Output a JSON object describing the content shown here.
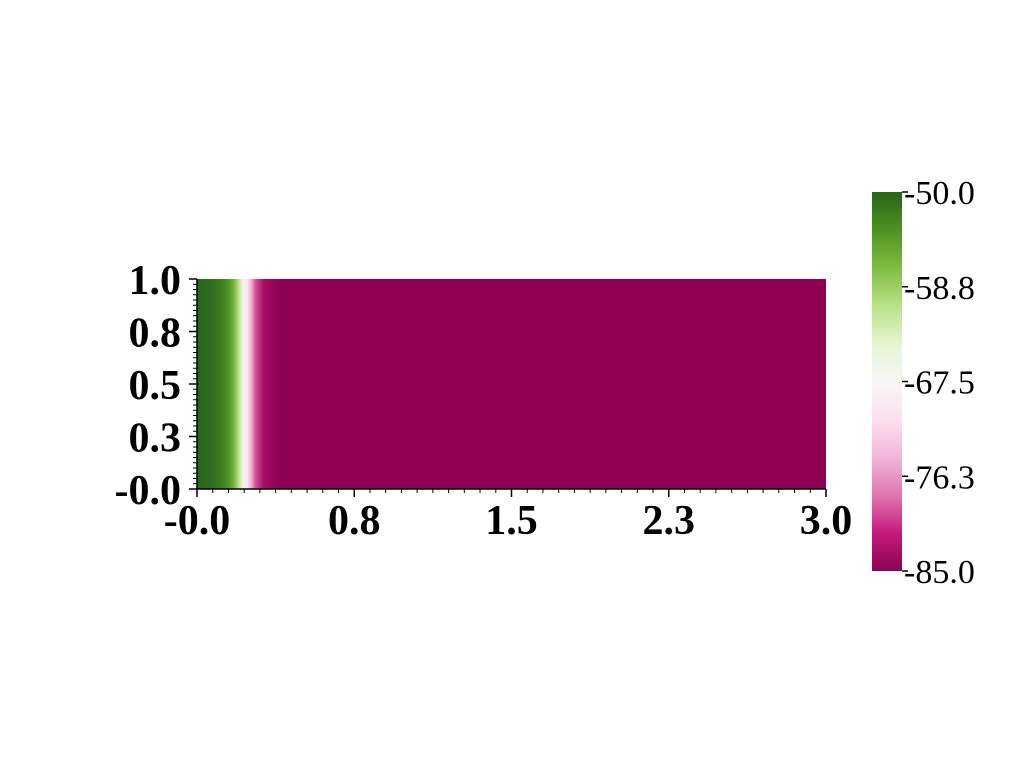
{
  "chart_data": {
    "type": "heatmap",
    "title": "",
    "xlabel": "",
    "ylabel": "",
    "xlim": [
      0,
      3
    ],
    "ylim": [
      0,
      1
    ],
    "x_tick_values": [
      0,
      0.75,
      1.5,
      2.25,
      3.0
    ],
    "x_tick_labels": [
      "-0.0",
      "0.8",
      "1.5",
      "2.3",
      "3.0"
    ],
    "y_tick_values": [
      0,
      0.25,
      0.5,
      0.75,
      1.0
    ],
    "y_tick_labels": [
      "-0.0",
      "0.3",
      "0.5",
      "0.8",
      "1.0"
    ],
    "x_minor_tick_step": 0.075,
    "y_minor_tick_step": 0.025,
    "field": {
      "description_axis": "x",
      "x": [
        0.0,
        0.06,
        0.12,
        0.16,
        0.18,
        0.2,
        0.22,
        0.24,
        0.26,
        0.28,
        0.32,
        0.4,
        1.0,
        3.0
      ],
      "values": [
        -50.0,
        -50.5,
        -52.0,
        -54.5,
        -57.0,
        -61.0,
        -66.0,
        -70.5,
        -75.0,
        -79.5,
        -83.5,
        -85.0,
        -85.0,
        -85.0
      ]
    },
    "colorbar": {
      "min": -85.0,
      "max": -50.0,
      "tick_values": [
        -50.0,
        -58.75,
        -67.5,
        -76.25,
        -85.0
      ],
      "tick_labels": [
        "-50.0",
        "-58.8",
        "-67.5",
        "-76.3",
        "-85.0"
      ],
      "colormap": "PiYG",
      "colors": [
        [
          0.0,
          "#8e0152"
        ],
        [
          0.1,
          "#c51b7d"
        ],
        [
          0.2,
          "#de77ae"
        ],
        [
          0.3,
          "#f1b6da"
        ],
        [
          0.4,
          "#fde0ef"
        ],
        [
          0.5,
          "#f7f7f7"
        ],
        [
          0.6,
          "#e6f5d0"
        ],
        [
          0.7,
          "#b8e186"
        ],
        [
          0.8,
          "#7fbc41"
        ],
        [
          0.9,
          "#4d9221"
        ],
        [
          1.0,
          "#276419"
        ]
      ]
    }
  }
}
